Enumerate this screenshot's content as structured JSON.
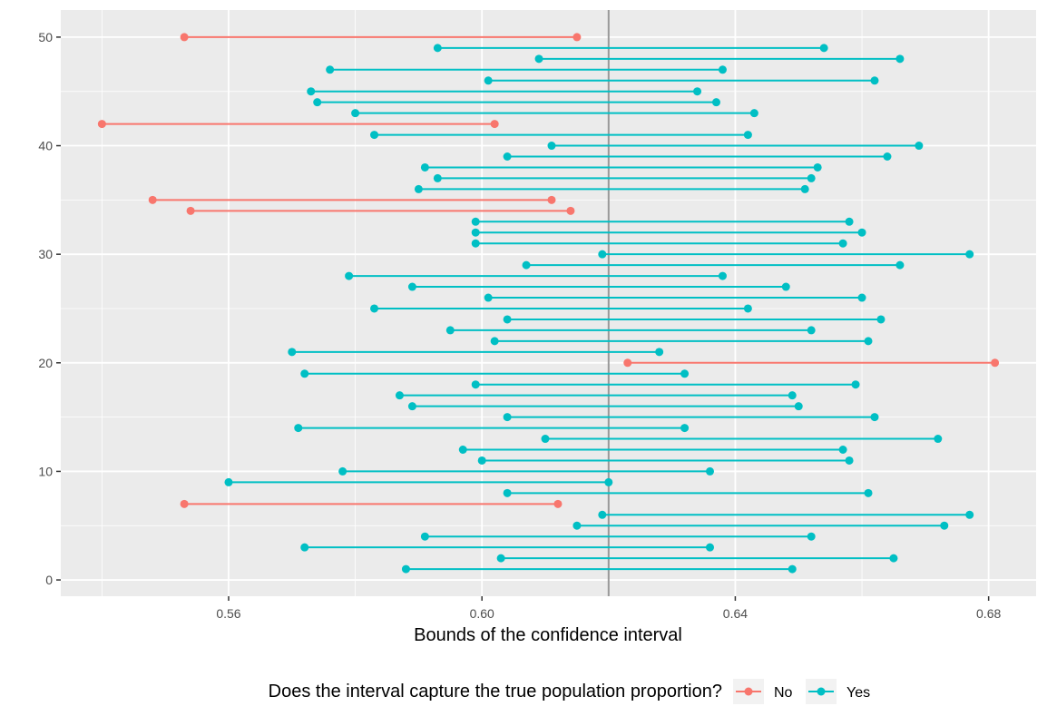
{
  "chart_data": {
    "type": "dumbbell",
    "xlabel": "Bounds of the confidence interval",
    "ylabel": "",
    "xlim": [
      0.5335,
      0.6875
    ],
    "ylim": [
      -1.5,
      52.5
    ],
    "x_ticks": [
      0.56,
      0.6,
      0.64,
      0.68
    ],
    "x_tick_labels": [
      "0.56",
      "0.60",
      "0.64",
      "0.68"
    ],
    "x_minor_ticks": [
      0.54,
      0.58,
      0.62,
      0.66
    ],
    "y_ticks": [
      0,
      10,
      20,
      30,
      40,
      50
    ],
    "y_tick_labels": [
      "0",
      "10",
      "20",
      "30",
      "40",
      "50"
    ],
    "y_minor_ticks": [
      5,
      15,
      25,
      35,
      45
    ],
    "reference_line": 0.62,
    "grid": true,
    "legend": {
      "title": "Does the interval capture the true population proportion?",
      "position": "bottom",
      "entries": [
        {
          "label": "No",
          "color": "#F8766D"
        },
        {
          "label": "Yes",
          "color": "#00BFC4"
        }
      ]
    },
    "colors": {
      "No": "#F8766D",
      "Yes": "#00BFC4"
    },
    "intervals": [
      {
        "y": 1,
        "lower": 0.588,
        "upper": 0.649,
        "captured": "Yes"
      },
      {
        "y": 2,
        "lower": 0.603,
        "upper": 0.665,
        "captured": "Yes"
      },
      {
        "y": 3,
        "lower": 0.572,
        "upper": 0.636,
        "captured": "Yes"
      },
      {
        "y": 4,
        "lower": 0.591,
        "upper": 0.652,
        "captured": "Yes"
      },
      {
        "y": 5,
        "lower": 0.615,
        "upper": 0.673,
        "captured": "Yes"
      },
      {
        "y": 6,
        "lower": 0.619,
        "upper": 0.677,
        "captured": "Yes"
      },
      {
        "y": 7,
        "lower": 0.553,
        "upper": 0.612,
        "captured": "No"
      },
      {
        "y": 8,
        "lower": 0.604,
        "upper": 0.661,
        "captured": "Yes"
      },
      {
        "y": 9,
        "lower": 0.56,
        "upper": 0.62,
        "captured": "Yes"
      },
      {
        "y": 10,
        "lower": 0.578,
        "upper": 0.636,
        "captured": "Yes"
      },
      {
        "y": 11,
        "lower": 0.6,
        "upper": 0.658,
        "captured": "Yes"
      },
      {
        "y": 12,
        "lower": 0.597,
        "upper": 0.657,
        "captured": "Yes"
      },
      {
        "y": 13,
        "lower": 0.61,
        "upper": 0.672,
        "captured": "Yes"
      },
      {
        "y": 14,
        "lower": 0.571,
        "upper": 0.632,
        "captured": "Yes"
      },
      {
        "y": 15,
        "lower": 0.604,
        "upper": 0.662,
        "captured": "Yes"
      },
      {
        "y": 16,
        "lower": 0.589,
        "upper": 0.65,
        "captured": "Yes"
      },
      {
        "y": 17,
        "lower": 0.587,
        "upper": 0.649,
        "captured": "Yes"
      },
      {
        "y": 18,
        "lower": 0.599,
        "upper": 0.659,
        "captured": "Yes"
      },
      {
        "y": 19,
        "lower": 0.572,
        "upper": 0.632,
        "captured": "Yes"
      },
      {
        "y": 20,
        "lower": 0.623,
        "upper": 0.681,
        "captured": "No"
      },
      {
        "y": 21,
        "lower": 0.57,
        "upper": 0.628,
        "captured": "Yes"
      },
      {
        "y": 22,
        "lower": 0.602,
        "upper": 0.661,
        "captured": "Yes"
      },
      {
        "y": 23,
        "lower": 0.595,
        "upper": 0.652,
        "captured": "Yes"
      },
      {
        "y": 24,
        "lower": 0.604,
        "upper": 0.663,
        "captured": "Yes"
      },
      {
        "y": 25,
        "lower": 0.583,
        "upper": 0.642,
        "captured": "Yes"
      },
      {
        "y": 26,
        "lower": 0.601,
        "upper": 0.66,
        "captured": "Yes"
      },
      {
        "y": 27,
        "lower": 0.589,
        "upper": 0.648,
        "captured": "Yes"
      },
      {
        "y": 28,
        "lower": 0.579,
        "upper": 0.638,
        "captured": "Yes"
      },
      {
        "y": 29,
        "lower": 0.607,
        "upper": 0.666,
        "captured": "Yes"
      },
      {
        "y": 30,
        "lower": 0.619,
        "upper": 0.677,
        "captured": "Yes"
      },
      {
        "y": 31,
        "lower": 0.599,
        "upper": 0.657,
        "captured": "Yes"
      },
      {
        "y": 32,
        "lower": 0.599,
        "upper": 0.66,
        "captured": "Yes"
      },
      {
        "y": 33,
        "lower": 0.599,
        "upper": 0.658,
        "captured": "Yes"
      },
      {
        "y": 34,
        "lower": 0.554,
        "upper": 0.614,
        "captured": "No"
      },
      {
        "y": 35,
        "lower": 0.548,
        "upper": 0.611,
        "captured": "No"
      },
      {
        "y": 36,
        "lower": 0.59,
        "upper": 0.651,
        "captured": "Yes"
      },
      {
        "y": 37,
        "lower": 0.593,
        "upper": 0.652,
        "captured": "Yes"
      },
      {
        "y": 38,
        "lower": 0.591,
        "upper": 0.653,
        "captured": "Yes"
      },
      {
        "y": 39,
        "lower": 0.604,
        "upper": 0.664,
        "captured": "Yes"
      },
      {
        "y": 40,
        "lower": 0.611,
        "upper": 0.669,
        "captured": "Yes"
      },
      {
        "y": 41,
        "lower": 0.583,
        "upper": 0.642,
        "captured": "Yes"
      },
      {
        "y": 42,
        "lower": 0.54,
        "upper": 0.602,
        "captured": "No"
      },
      {
        "y": 43,
        "lower": 0.58,
        "upper": 0.643,
        "captured": "Yes"
      },
      {
        "y": 44,
        "lower": 0.574,
        "upper": 0.637,
        "captured": "Yes"
      },
      {
        "y": 45,
        "lower": 0.573,
        "upper": 0.634,
        "captured": "Yes"
      },
      {
        "y": 46,
        "lower": 0.601,
        "upper": 0.662,
        "captured": "Yes"
      },
      {
        "y": 47,
        "lower": 0.576,
        "upper": 0.638,
        "captured": "Yes"
      },
      {
        "y": 48,
        "lower": 0.609,
        "upper": 0.666,
        "captured": "Yes"
      },
      {
        "y": 49,
        "lower": 0.593,
        "upper": 0.654,
        "captured": "Yes"
      },
      {
        "y": 50,
        "lower": 0.553,
        "upper": 0.615,
        "captured": "No"
      }
    ]
  }
}
